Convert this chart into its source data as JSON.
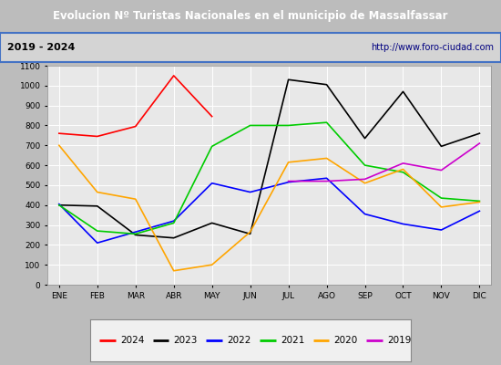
{
  "title": "Evolucion Nº Turistas Nacionales en el municipio de Massalfassar",
  "subtitle_left": "2019 - 2024",
  "subtitle_right": "http://www.foro-ciudad.com",
  "months": [
    "ENE",
    "FEB",
    "MAR",
    "ABR",
    "MAY",
    "JUN",
    "JUL",
    "AGO",
    "SEP",
    "OCT",
    "NOV",
    "DIC"
  ],
  "series": {
    "2024": [
      760,
      745,
      795,
      1050,
      845,
      null,
      null,
      null,
      null,
      null,
      null,
      null
    ],
    "2023": [
      400,
      395,
      250,
      235,
      310,
      255,
      1030,
      1005,
      735,
      970,
      695,
      760
    ],
    "2022": [
      405,
      210,
      265,
      320,
      510,
      465,
      515,
      535,
      355,
      305,
      275,
      370
    ],
    "2021": [
      400,
      270,
      255,
      310,
      695,
      800,
      800,
      815,
      600,
      565,
      435,
      420
    ],
    "2020": [
      700,
      465,
      430,
      70,
      100,
      265,
      615,
      635,
      510,
      580,
      390,
      415
    ],
    "2019": [
      null,
      null,
      null,
      null,
      null,
      null,
      520,
      520,
      530,
      610,
      575,
      710
    ]
  },
  "colors": {
    "2024": "#ff0000",
    "2023": "#000000",
    "2022": "#0000ff",
    "2021": "#00cc00",
    "2020": "#ffa500",
    "2019": "#cc00cc"
  },
  "ylim": [
    0,
    1100
  ],
  "yticks": [
    0,
    100,
    200,
    300,
    400,
    500,
    600,
    700,
    800,
    900,
    1000,
    1100
  ],
  "title_bg_color": "#4472c4",
  "title_text_color": "#ffffff",
  "plot_bg_color": "#e8e8e8",
  "outer_bg_color": "#bcbcbc",
  "grid_color": "#ffffff",
  "subtitle_bg_color": "#d4d4d4",
  "border_color": "#4472c4",
  "legend_bg_color": "#f0f0f0"
}
